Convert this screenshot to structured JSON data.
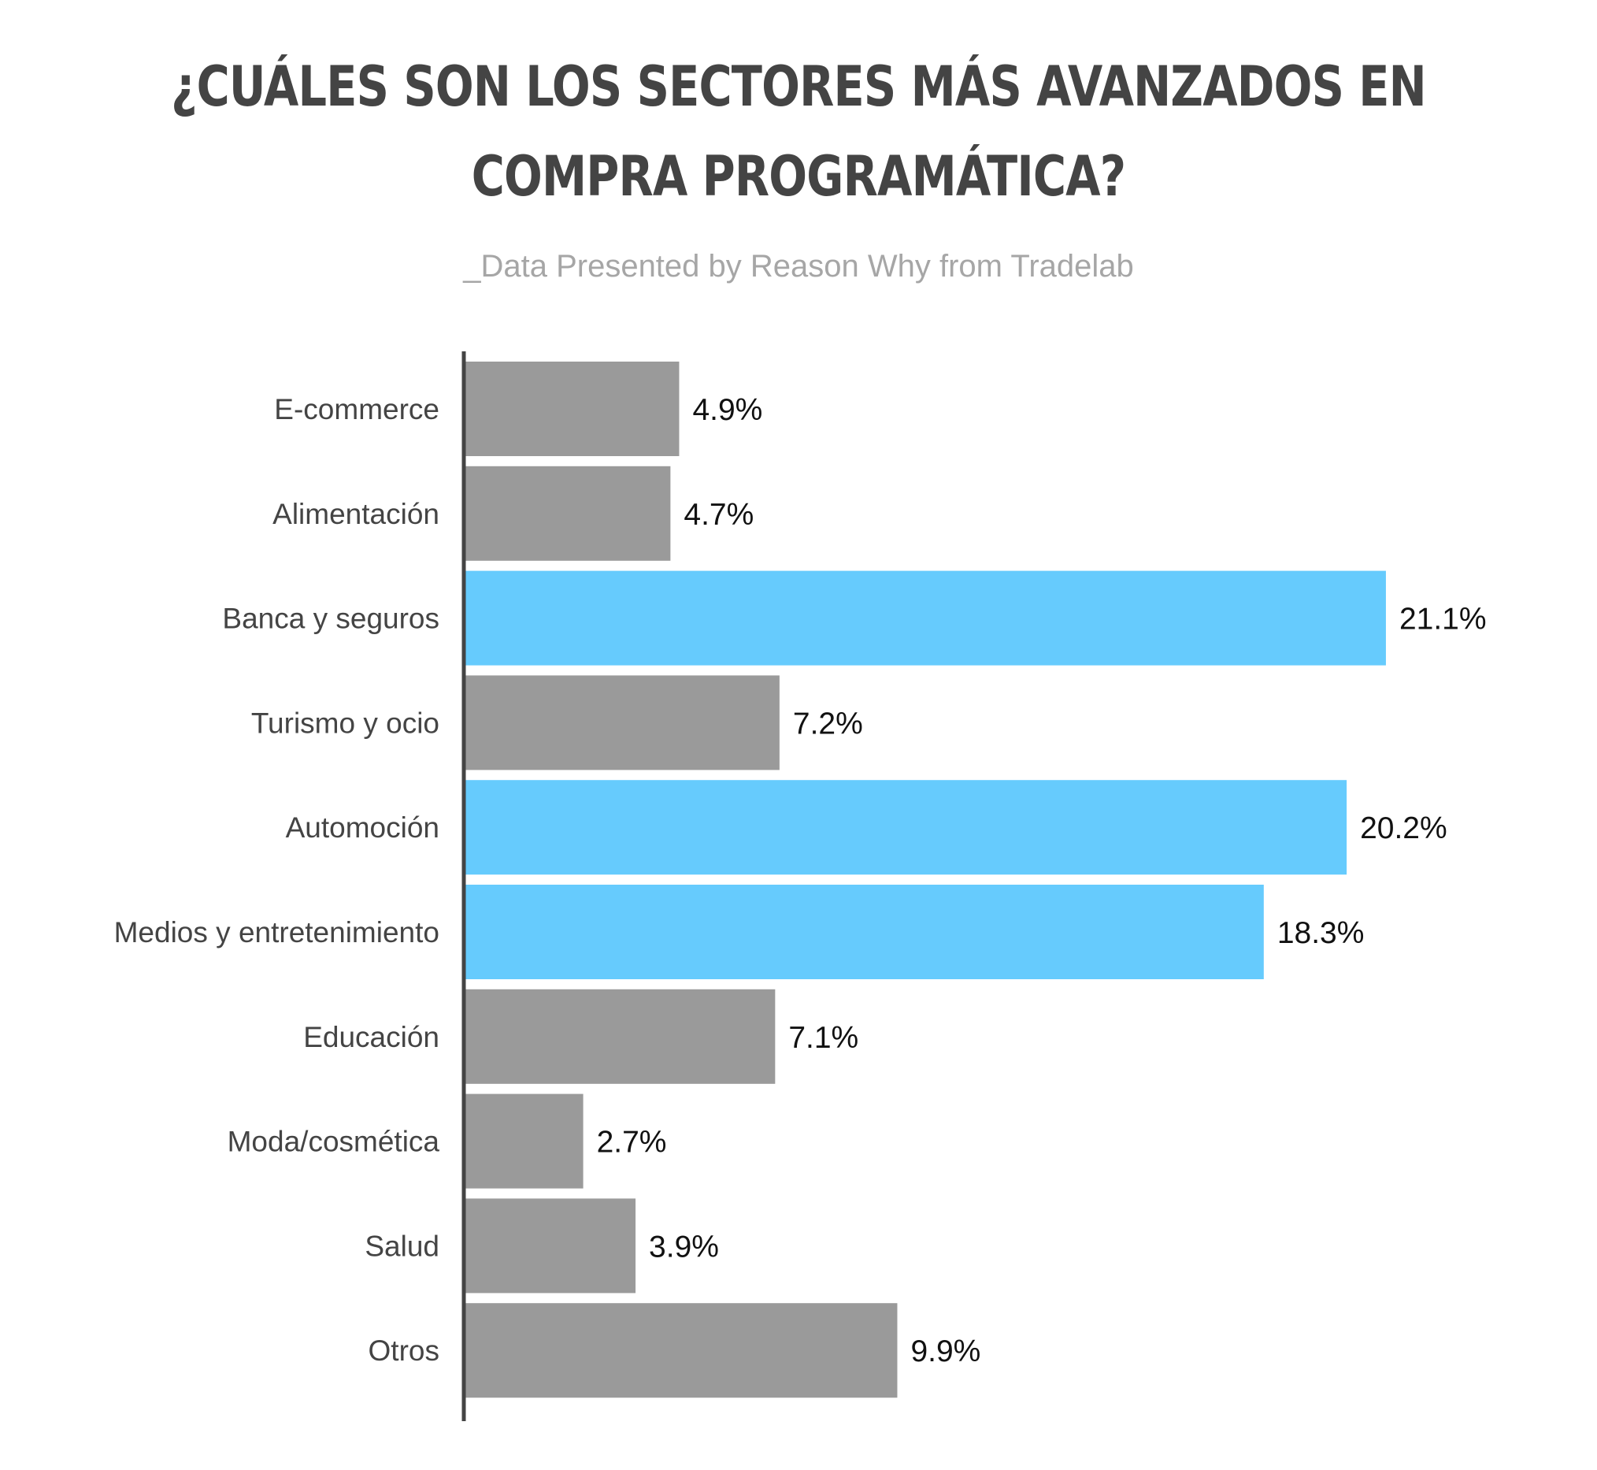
{
  "title_line1": "¿CUÁLES SON LOS SECTORES MÁS AVANZADOS EN",
  "title_line2": "COMPRA PROGRAMÁTICA?",
  "subtitle": "_Data Presented by Reason Why from Tradelab",
  "colors": {
    "default": "#9a9a9a",
    "highlight": "#66cbfd",
    "axis": "#444444"
  },
  "chart_data": {
    "type": "bar",
    "orientation": "horizontal",
    "title": "¿CUÁLES SON LOS SECTORES MÁS AVANZADOS EN COMPRA PROGRAMÁTICA?",
    "categories": [
      "E-commerce",
      "Alimentación",
      "Banca y seguros",
      "Turismo y ocio",
      "Automoción",
      "Medios y entretenimiento",
      "Educación",
      "Moda/cosmética",
      "Salud",
      "Otros"
    ],
    "values": [
      4.9,
      4.7,
      21.1,
      7.2,
      20.2,
      18.3,
      7.1,
      2.7,
      3.9,
      9.9
    ],
    "labels": [
      "4.9%",
      "4.7%",
      "21.1%",
      "7.2%",
      "20.2%",
      "18.3%",
      "7.1%",
      "2.7%",
      "3.9%",
      "9.9%"
    ],
    "highlighted": [
      false,
      false,
      true,
      false,
      true,
      true,
      false,
      false,
      false,
      false
    ],
    "xlabel": "",
    "ylabel": "",
    "xlim": [
      0,
      24
    ],
    "grid": false
  }
}
